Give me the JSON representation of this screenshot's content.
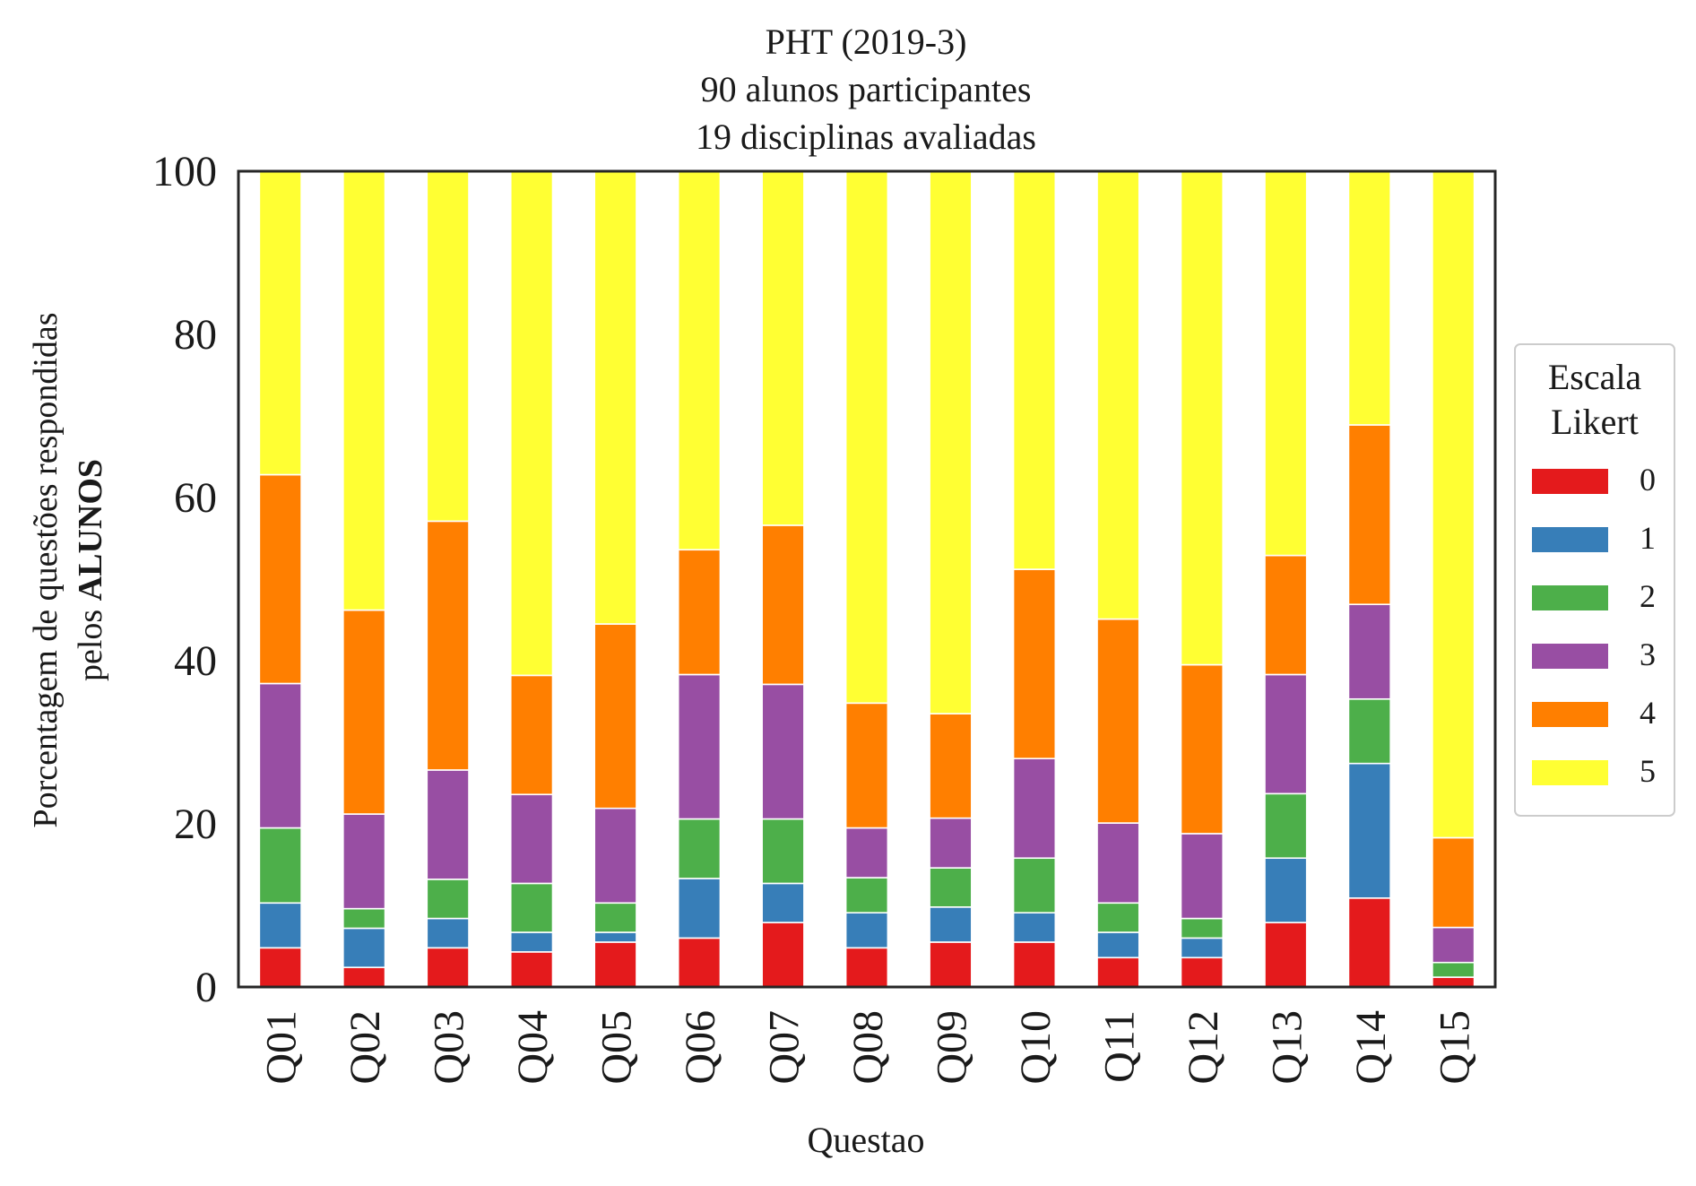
{
  "chart_data": {
    "type": "bar",
    "stacked": true,
    "title": [
      "PHT (2019-3)",
      "90 alunos participantes",
      "19 disciplinas avaliadas"
    ],
    "xlabel": "Questao",
    "ylabel_line1": "Porcentagem de questões respondidas",
    "ylabel_line2_prefix": "pelos ",
    "ylabel_line2_bold": "ALUNOS",
    "ylim": [
      0,
      100
    ],
    "yticks": [
      "0",
      "20",
      "40",
      "60",
      "80",
      "100"
    ],
    "categories": [
      "Q01",
      "Q02",
      "Q03",
      "Q04",
      "Q05",
      "Q06",
      "Q07",
      "Q08",
      "Q09",
      "Q10",
      "Q11",
      "Q12",
      "Q13",
      "Q14",
      "Q15"
    ],
    "legend": {
      "title": [
        "Escala",
        "Likert"
      ],
      "placement": "center-right, outside plot"
    },
    "series": [
      {
        "name": "0",
        "color": "#e41a1c",
        "values": [
          4.8,
          2.4,
          4.8,
          4.3,
          5.5,
          6.0,
          7.9,
          4.8,
          5.5,
          5.5,
          3.6,
          3.6,
          7.9,
          10.9,
          1.2
        ]
      },
      {
        "name": "1",
        "color": "#377eb8",
        "values": [
          5.5,
          4.8,
          3.6,
          2.4,
          1.2,
          7.3,
          4.8,
          4.3,
          4.3,
          3.6,
          3.1,
          2.4,
          7.9,
          16.5,
          0.0
        ]
      },
      {
        "name": "2",
        "color": "#4daf4a",
        "values": [
          9.2,
          2.4,
          4.8,
          6.0,
          3.6,
          7.3,
          7.9,
          4.3,
          4.8,
          6.7,
          3.6,
          2.4,
          7.9,
          7.9,
          1.8
        ]
      },
      {
        "name": "3",
        "color": "#984ea3",
        "values": [
          17.7,
          11.6,
          13.4,
          10.9,
          11.6,
          17.7,
          16.5,
          6.1,
          6.1,
          12.2,
          9.8,
          10.4,
          14.6,
          11.6,
          4.3
        ]
      },
      {
        "name": "4",
        "color": "#ff7f00",
        "values": [
          25.6,
          25.0,
          30.5,
          14.6,
          22.6,
          15.3,
          19.5,
          15.3,
          12.8,
          23.2,
          25.0,
          20.7,
          14.6,
          22.0,
          11.0
        ]
      },
      {
        "name": "5",
        "color": "#ffff33",
        "values": [
          37.2,
          53.8,
          42.9,
          61.8,
          55.5,
          46.4,
          43.4,
          65.2,
          66.5,
          48.8,
          54.9,
          60.5,
          47.1,
          31.1,
          81.7
        ]
      }
    ]
  }
}
